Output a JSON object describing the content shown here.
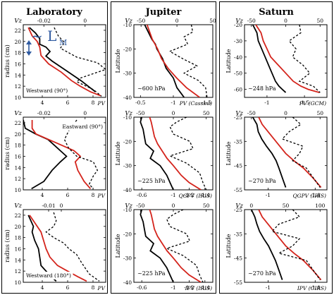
{
  "columns": [
    {
      "title": "Laboratory"
    },
    {
      "title": "Jupiter"
    },
    {
      "title": "Saturn"
    }
  ],
  "overlays": {
    "lm_symbol": "~ L",
    "lm_sub": "M"
  },
  "chart_data": [
    {
      "type": "line",
      "column": "Laboratory",
      "row": 1,
      "ylabel": "radius (cm)",
      "top_axis_label": "Vz",
      "bottom_axis_label": "PV",
      "annotation": "Westward (90°)",
      "top_ticks": [
        -0.02,
        0
      ],
      "bottom_ticks": [
        4,
        6,
        8
      ],
      "y_ticks": [
        22,
        20,
        18,
        16,
        14,
        12,
        10
      ],
      "ylim": [
        10,
        23
      ],
      "series": [
        {
          "name": "Vz",
          "style": "black solid",
          "x": [
            -0.027,
            -0.024,
            -0.022,
            -0.022,
            -0.019,
            -0.017,
            -0.019,
            -0.016,
            -0.01,
            -0.002,
            0.005
          ],
          "y": [
            22.5,
            21.5,
            20.5,
            19.5,
            19.0,
            18.2,
            17.4,
            16.5,
            15.0,
            13.0,
            11.0
          ]
        },
        {
          "name": "PV",
          "style": "red solid",
          "x": [
            2.9,
            3.2,
            3.6,
            3.8,
            3.9,
            4.5,
            5.5,
            6.3,
            7.0,
            7.8,
            8.6
          ],
          "y": [
            22.5,
            21.0,
            20.0,
            19.0,
            17.5,
            16.0,
            14.5,
            13.0,
            12.0,
            11.0,
            10.3
          ]
        },
        {
          "name": "PV (dashed)",
          "style": "black dashed",
          "x": [
            -0.015,
            -0.013,
            -0.01,
            -0.012,
            -0.004,
            0.006,
            0.01,
            -0.002,
            -0.004,
            0.004,
            0.008
          ],
          "y": [
            22.5,
            21.0,
            19.8,
            18.8,
            17.2,
            16.2,
            15.0,
            13.5,
            12.8,
            11.4,
            10.2
          ]
        }
      ]
    },
    {
      "type": "line",
      "column": "Laboratory",
      "row": 2,
      "ylabel": "radius (cm)",
      "top_axis_label": "Vz",
      "bottom_axis_label": "PV",
      "annotation": "Eastward (90°)",
      "top_ticks": [
        -0.02,
        0
      ],
      "bottom_ticks": [
        4,
        6,
        8
      ],
      "y_ticks": [
        22,
        20,
        18,
        16,
        14,
        12,
        10
      ],
      "ylim": [
        10,
        23
      ],
      "series": [
        {
          "name": "Vz",
          "style": "black solid",
          "x": [
            -0.03,
            -0.029,
            -0.024,
            -0.018,
            -0.015,
            -0.012,
            -0.009,
            -0.012,
            -0.016,
            -0.02,
            -0.026
          ],
          "y": [
            22.5,
            21.0,
            20.0,
            19.0,
            18.0,
            17.0,
            16.0,
            15.0,
            13.5,
            11.5,
            10.2
          ]
        },
        {
          "name": "PV",
          "style": "red solid",
          "x": [
            3.2,
            3.2,
            3.5,
            4.5,
            5.5,
            6.5,
            7.0,
            6.6,
            6.8,
            7.3,
            7.8
          ],
          "y": [
            22.5,
            21.0,
            20.0,
            19.0,
            18.0,
            17.0,
            16.0,
            15.0,
            13.5,
            11.5,
            10.2
          ]
        },
        {
          "name": "PV (dashed)",
          "style": "black dashed",
          "x": [
            -0.004,
            -0.006,
            -0.008,
            -0.01,
            -0.008,
            -0.004,
            0.004,
            0.006,
            0.004,
            0.002,
            0.004
          ],
          "y": [
            22.5,
            21.5,
            20.5,
            19.0,
            17.5,
            16.0,
            15.0,
            13.5,
            12.5,
            11.0,
            10.2
          ]
        }
      ]
    },
    {
      "type": "line",
      "column": "Laboratory",
      "row": 3,
      "ylabel": "radius (cm)",
      "top_axis_label": "Vz",
      "bottom_axis_label": "PV",
      "annotation": "Westward (180°)",
      "top_ticks": [
        -0.01,
        0
      ],
      "bottom_ticks": [
        4,
        6,
        8
      ],
      "y_ticks": [
        22,
        20,
        18,
        16,
        14,
        12,
        10
      ],
      "ylim": [
        10,
        23
      ],
      "series": [
        {
          "name": "Vz",
          "style": "black solid",
          "x": [
            -0.026,
            -0.024,
            -0.022,
            -0.023,
            -0.021,
            -0.018,
            -0.017,
            -0.016,
            -0.012,
            -0.008,
            -0.004
          ],
          "y": [
            22.0,
            21.0,
            20.0,
            19.0,
            17.5,
            16.0,
            14.5,
            13.0,
            12.0,
            11.0,
            10.2
          ]
        },
        {
          "name": "PV",
          "style": "red solid",
          "x": [
            3.0,
            3.3,
            3.6,
            3.9,
            4.1,
            4.3,
            4.6,
            5.2,
            6.0,
            6.8,
            7.5
          ],
          "y": [
            22.0,
            21.0,
            20.0,
            19.0,
            17.5,
            16.0,
            14.5,
            13.0,
            12.0,
            11.0,
            10.2
          ]
        },
        {
          "name": "PV (dashed)",
          "style": "black dashed",
          "x": [
            -0.006,
            -0.004,
            -0.006,
            -0.012,
            -0.006,
            0.002,
            0.006,
            0.012,
            0.016,
            0.022,
            0.03
          ],
          "y": [
            22.5,
            21.0,
            20.0,
            19.0,
            18.0,
            17.0,
            16.0,
            15.0,
            13.5,
            11.5,
            10.2
          ]
        }
      ]
    },
    {
      "type": "line",
      "column": "Jupiter",
      "row": 1,
      "ylabel": "Latitude",
      "top_axis_label": "Vz",
      "bottom_axis_label": "PV (Cassini)",
      "annotation": "~600 hPa",
      "top_ticks": [
        -50,
        0,
        50
      ],
      "bottom_ticks": [
        -0.5,
        -1,
        -1.5
      ],
      "y_ticks": [
        -10,
        -20,
        -30,
        -40
      ],
      "ylim": [
        -40,
        -10
      ],
      "series": [
        {
          "name": "Vz",
          "style": "black solid",
          "x": [
            -45,
            -40,
            -35,
            -30,
            -28,
            -20,
            -15,
            -5,
            0,
            10
          ],
          "y": [
            -10,
            -13,
            -16,
            -18,
            -20,
            -24,
            -28,
            -32,
            -36,
            -40
          ]
        },
        {
          "name": "PV",
          "style": "red solid",
          "x": [
            -0.6,
            -0.64,
            -0.68,
            -0.72,
            -0.76,
            -0.82,
            -0.92,
            -1.05,
            -1.2,
            -1.4
          ],
          "y": [
            -10,
            -13,
            -16,
            -18,
            -20,
            -24,
            -28,
            -32,
            -36,
            -40
          ]
        },
        {
          "name": "PV (dashed)",
          "style": "black dashed",
          "x": [
            20,
            22,
            10,
            15,
            -10,
            8,
            28,
            10,
            30,
            40,
            42
          ],
          "y": [
            -10,
            -13,
            -15,
            -18,
            -21,
            -24,
            -27,
            -30,
            -33,
            -36,
            -40
          ]
        }
      ]
    },
    {
      "type": "line",
      "column": "Jupiter",
      "row": 2,
      "ylabel": "Latitude",
      "top_axis_label": "Vz",
      "bottom_axis_label": "QGPV (IRIS)",
      "annotation": "~225 hPa",
      "top_ticks": [
        -50,
        0,
        50
      ],
      "bottom_ticks": [
        -0.6,
        -1,
        -1.2,
        -1.4
      ],
      "y_ticks": [
        -10,
        -20,
        -30,
        -40
      ],
      "ylim": [
        -40,
        -10
      ],
      "series": [
        {
          "name": "Vz",
          "style": "black solid",
          "x": [
            -48,
            -50,
            -46,
            -44,
            -42,
            -30,
            -35,
            -20,
            -10,
            -5,
            0
          ],
          "y": [
            -10,
            -12,
            -15,
            -18,
            -21,
            -24,
            -27,
            -30,
            -34,
            -37,
            -40
          ]
        },
        {
          "name": "PV",
          "style": "red solid",
          "x": [
            -0.7,
            -0.72,
            -0.74,
            -0.76,
            -0.8,
            -0.86,
            -0.92,
            -1.0,
            -1.1,
            -1.2,
            -1.35
          ],
          "y": [
            -10,
            -12,
            -15,
            -18,
            -21,
            -24,
            -27,
            -30,
            -34,
            -37,
            -40
          ]
        },
        {
          "name": "PV (dashed)",
          "style": "black dashed",
          "x": [
            20,
            5,
            -5,
            0,
            25,
            30,
            -5,
            20,
            40,
            45,
            50
          ],
          "y": [
            -10,
            -12,
            -14,
            -17,
            -20,
            -23,
            -26,
            -29,
            -33,
            -37,
            -40
          ]
        }
      ]
    },
    {
      "type": "line",
      "column": "Jupiter",
      "row": 3,
      "ylabel": "Latitude",
      "top_axis_label": "Vz",
      "bottom_axis_label": "IPV (IRIS)",
      "annotation": "~225 hPa",
      "top_ticks": [
        -50,
        0,
        50
      ],
      "bottom_ticks": [
        -0.6,
        -1,
        -1.2,
        -1.4
      ],
      "y_ticks": [
        -10,
        -20,
        -30,
        -40
      ],
      "ylim": [
        -40,
        -10
      ],
      "series": [
        {
          "name": "Vz",
          "style": "black solid",
          "x": [
            -48,
            -50,
            -46,
            -44,
            -42,
            -30,
            -35,
            -20,
            -10,
            -5,
            0
          ],
          "y": [
            -10,
            -12,
            -15,
            -18,
            -21,
            -24,
            -27,
            -30,
            -34,
            -37,
            -40
          ]
        },
        {
          "name": "PV",
          "style": "red solid",
          "x": [
            -0.7,
            -0.72,
            -0.74,
            -0.76,
            -0.8,
            -0.86,
            -0.92,
            -1.0,
            -1.1,
            -1.2,
            -1.35
          ],
          "y": [
            -10,
            -12,
            -15,
            -18,
            -21,
            -24,
            -27,
            -30,
            -34,
            -37,
            -40
          ]
        },
        {
          "name": "PV (dashed)",
          "style": "black dashed",
          "x": [
            15,
            0,
            -10,
            -5,
            20,
            25,
            -10,
            15,
            35,
            40,
            45
          ],
          "y": [
            -10,
            -12,
            -14,
            -17,
            -20,
            -23,
            -26,
            -29,
            -33,
            -37,
            -40
          ]
        }
      ]
    },
    {
      "type": "line",
      "column": "Saturn",
      "row": 1,
      "ylabel": "Latitude",
      "top_axis_label": "Vz",
      "bottom_axis_label": "PV (GCM)",
      "annotation": "~248 hPa",
      "top_ticks": [
        -50,
        0,
        50
      ],
      "bottom_ticks": [
        -1,
        -1.5
      ],
      "y_ticks": [
        -20,
        -30,
        -40,
        -50,
        -60
      ],
      "ylim": [
        -65,
        -20
      ],
      "series": [
        {
          "name": "Vz",
          "style": "black solid",
          "x": [
            -48,
            -42,
            -40,
            -35,
            -30,
            -25,
            -20,
            -15,
            -10,
            -5,
            0
          ],
          "y": [
            -20,
            -25,
            -30,
            -35,
            -40,
            -45,
            -50,
            -55,
            -58,
            -60,
            -62
          ]
        },
        {
          "name": "PV",
          "style": "red solid",
          "x": [
            -0.85,
            -0.92,
            -0.95,
            -1.0,
            -1.05,
            -1.15,
            -1.25,
            -1.35,
            -1.45,
            -1.55,
            -1.7
          ],
          "y": [
            -20,
            -25,
            -30,
            -35,
            -40,
            -45,
            -50,
            -55,
            -58,
            -60,
            -62
          ]
        },
        {
          "name": "PV (dashed)",
          "style": "black dashed",
          "x": [
            20,
            22,
            5,
            15,
            10,
            25,
            35,
            20,
            40,
            45,
            50
          ],
          "y": [
            -20,
            -25,
            -30,
            -35,
            -40,
            -45,
            -50,
            -55,
            -58,
            -60,
            -62
          ]
        }
      ]
    },
    {
      "type": "line",
      "column": "Saturn",
      "row": 2,
      "ylabel": "Latitude",
      "top_axis_label": "Vz",
      "bottom_axis_label": "QGPV (IRIS)",
      "annotation": "~270 hPa",
      "top_ticks": [
        -50,
        0,
        50
      ],
      "bottom_ticks": [
        -1,
        -1.4
      ],
      "y_ticks": [
        -25,
        -35,
        -45,
        -55
      ],
      "ylim": [
        -55,
        -25
      ],
      "series": [
        {
          "name": "Vz",
          "style": "black solid",
          "x": [
            -48,
            -42,
            -40,
            -35,
            -28,
            -20,
            -14,
            -10,
            -5,
            0
          ],
          "y": [
            -25,
            -28,
            -31,
            -34,
            -37,
            -40,
            -43,
            -46,
            -50,
            -54
          ]
        },
        {
          "name": "PV",
          "style": "red solid",
          "x": [
            -0.92,
            -0.95,
            -1.0,
            -1.05,
            -1.1,
            -1.15,
            -1.22,
            -1.3,
            -1.38,
            -1.45
          ],
          "y": [
            -25,
            -28,
            -31,
            -34,
            -37,
            -40,
            -43,
            -46,
            -50,
            -54
          ]
        },
        {
          "name": "PV (dashed)",
          "style": "black dashed",
          "x": [
            10,
            22,
            5,
            -5,
            25,
            20,
            10,
            30,
            40,
            50
          ],
          "y": [
            -25,
            -28,
            -31,
            -34,
            -37,
            -40,
            -43,
            -46,
            -50,
            -54
          ]
        }
      ]
    },
    {
      "type": "line",
      "column": "Saturn",
      "row": 3,
      "ylabel": "Latitude",
      "top_axis_label": "Vz",
      "bottom_axis_label": "IPV (CIRS)",
      "annotation": "~270 hPa",
      "top_ticks": [
        0,
        50,
        100
      ],
      "bottom_ticks": [
        -1,
        -1.4
      ],
      "y_ticks": [
        -25,
        -35,
        -45,
        -55
      ],
      "ylim": [
        -55,
        -25
      ],
      "series": [
        {
          "name": "Vz",
          "style": "black solid",
          "x": [
            0,
            5,
            8,
            12,
            18,
            25,
            30,
            35,
            40,
            45
          ],
          "y": [
            -25,
            -28,
            -31,
            -34,
            -37,
            -40,
            -43,
            -46,
            -50,
            -54
          ]
        },
        {
          "name": "PV",
          "style": "red solid",
          "x": [
            -0.92,
            -0.95,
            -1.0,
            -1.05,
            -1.1,
            -1.15,
            -1.22,
            -1.3,
            -1.38,
            -1.45
          ],
          "y": [
            -25,
            -28,
            -31,
            -34,
            -37,
            -40,
            -43,
            -46,
            -50,
            -54
          ]
        },
        {
          "name": "PV (dashed)",
          "style": "black dashed",
          "x": [
            60,
            70,
            40,
            30,
            70,
            60,
            40,
            80,
            90,
            100
          ],
          "y": [
            -25,
            -28,
            -31,
            -34,
            -37,
            -40,
            -43,
            -46,
            -50,
            -54
          ]
        }
      ]
    }
  ]
}
